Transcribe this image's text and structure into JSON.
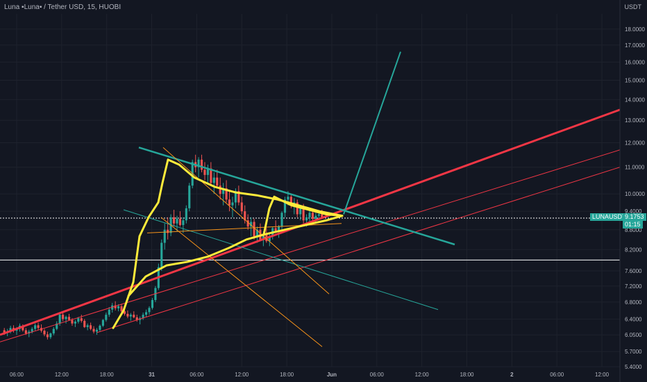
{
  "header": {
    "title": "Luna ▪Luna▪ / Tether USD, 15, HUOBI",
    "unit": "USDT"
  },
  "price_line": {
    "symbol": "LUNAUSDT",
    "last_price": "9.1753",
    "countdown": "01:15"
  },
  "colors": {
    "background": "#131722",
    "grid": "#1e222d",
    "up": "#26a69a",
    "down": "#ef5350",
    "pattern": "#ffeb3b",
    "trend_red": "#f23645",
    "trend_teal": "#26a69a",
    "channel_orange": "#f7931a",
    "axis_text": "#b2b5be"
  },
  "chart_data": {
    "type": "candlestick",
    "y_scale": "log",
    "ylim": [
      5.4,
      19.0
    ],
    "y_ticks": [
      "18.0000",
      "17.0000",
      "16.0000",
      "15.0000",
      "14.0000",
      "13.0000",
      "12.0000",
      "11.0000",
      "10.0000",
      "9.4000",
      "8.8000",
      "8.2000",
      "7.6000",
      "7.2000",
      "6.8000",
      "6.4000",
      "6.0500",
      "5.7000",
      "5.4000"
    ],
    "x_ticks": [
      "06:00",
      "12:00",
      "18:00",
      "31",
      "06:00",
      "12:00",
      "18:00",
      "Jun",
      "06:00",
      "12:00",
      "18:00",
      "2",
      "06:00",
      "12:00"
    ],
    "horizontal_levels": [
      9.1753,
      7.9
    ],
    "candles": [
      [
        6.15,
        6.2,
        6.05,
        6.1
      ],
      [
        6.1,
        6.18,
        6.02,
        6.12
      ],
      [
        6.12,
        6.25,
        6.08,
        6.2
      ],
      [
        6.2,
        6.26,
        6.1,
        6.14
      ],
      [
        6.14,
        6.22,
        6.05,
        6.18
      ],
      [
        6.18,
        6.3,
        6.12,
        6.25
      ],
      [
        6.25,
        6.28,
        6.12,
        6.15
      ],
      [
        6.15,
        6.2,
        6.05,
        6.08
      ],
      [
        6.08,
        6.16,
        6.0,
        6.12
      ],
      [
        6.12,
        6.22,
        6.08,
        6.18
      ],
      [
        6.18,
        6.3,
        6.14,
        6.26
      ],
      [
        6.26,
        6.32,
        6.15,
        6.2
      ],
      [
        6.2,
        6.28,
        6.1,
        6.14
      ],
      [
        6.14,
        6.18,
        6.02,
        6.06
      ],
      [
        6.06,
        6.12,
        5.95,
        6.0
      ],
      [
        6.0,
        6.1,
        5.96,
        6.08
      ],
      [
        6.08,
        6.22,
        6.04,
        6.18
      ],
      [
        6.18,
        6.35,
        6.15,
        6.3
      ],
      [
        6.3,
        6.55,
        6.25,
        6.5
      ],
      [
        6.5,
        6.58,
        6.35,
        6.4
      ],
      [
        6.4,
        6.48,
        6.3,
        6.45
      ],
      [
        6.45,
        6.52,
        6.36,
        6.38
      ],
      [
        6.38,
        6.42,
        6.25,
        6.3
      ],
      [
        6.3,
        6.38,
        6.22,
        6.34
      ],
      [
        6.34,
        6.45,
        6.3,
        6.42
      ],
      [
        6.42,
        6.5,
        6.32,
        6.36
      ],
      [
        6.36,
        6.4,
        6.2,
        6.22
      ],
      [
        6.22,
        6.3,
        6.15,
        6.26
      ],
      [
        6.26,
        6.32,
        6.15,
        6.18
      ],
      [
        6.18,
        6.24,
        6.08,
        6.12
      ],
      [
        6.12,
        6.2,
        6.05,
        6.16
      ],
      [
        6.16,
        6.28,
        6.12,
        6.25
      ],
      [
        6.25,
        6.4,
        6.22,
        6.38
      ],
      [
        6.38,
        6.55,
        6.34,
        6.5
      ],
      [
        6.5,
        6.68,
        6.45,
        6.62
      ],
      [
        6.62,
        6.78,
        6.55,
        6.72
      ],
      [
        6.72,
        6.82,
        6.6,
        6.65
      ],
      [
        6.65,
        6.75,
        6.58,
        6.7
      ],
      [
        6.7,
        6.76,
        6.55,
        6.58
      ],
      [
        6.58,
        6.64,
        6.48,
        6.52
      ],
      [
        6.52,
        6.6,
        6.42,
        6.46
      ],
      [
        6.46,
        6.54,
        6.36,
        6.5
      ],
      [
        6.5,
        6.58,
        6.42,
        6.44
      ],
      [
        6.44,
        6.5,
        6.34,
        6.38
      ],
      [
        6.38,
        6.46,
        6.28,
        6.42
      ],
      [
        6.42,
        6.55,
        6.38,
        6.5
      ],
      [
        6.5,
        6.62,
        6.44,
        6.56
      ],
      [
        6.56,
        6.7,
        6.5,
        6.66
      ],
      [
        6.66,
        6.9,
        6.62,
        6.85
      ],
      [
        6.85,
        7.2,
        6.8,
        7.15
      ],
      [
        7.15,
        7.8,
        7.1,
        7.7
      ],
      [
        7.7,
        8.5,
        7.6,
        8.4
      ],
      [
        8.4,
        9.0,
        8.2,
        8.8
      ],
      [
        8.8,
        9.2,
        8.5,
        8.7
      ],
      [
        8.7,
        9.3,
        8.6,
        9.2
      ],
      [
        9.2,
        9.45,
        8.9,
        9.0
      ],
      [
        9.0,
        9.25,
        8.75,
        9.15
      ],
      [
        9.15,
        9.4,
        8.9,
        8.95
      ],
      [
        8.95,
        9.2,
        8.7,
        9.1
      ],
      [
        9.1,
        9.6,
        9.0,
        9.5
      ],
      [
        9.5,
        10.4,
        9.4,
        10.3
      ],
      [
        10.3,
        11.3,
        10.2,
        11.2
      ],
      [
        11.2,
        11.5,
        10.8,
        11.0
      ],
      [
        11.0,
        11.4,
        10.6,
        11.3
      ],
      [
        11.3,
        11.5,
        10.8,
        10.9
      ],
      [
        10.9,
        11.2,
        10.5,
        10.7
      ],
      [
        10.7,
        11.1,
        10.4,
        10.95
      ],
      [
        10.95,
        11.2,
        10.3,
        10.4
      ],
      [
        10.4,
        10.8,
        10.0,
        10.6
      ],
      [
        10.6,
        10.9,
        10.2,
        10.3
      ],
      [
        10.3,
        10.6,
        9.8,
        10.0
      ],
      [
        10.0,
        10.4,
        9.6,
        10.2
      ],
      [
        10.2,
        10.5,
        9.7,
        9.8
      ],
      [
        9.8,
        10.1,
        9.4,
        9.6
      ],
      [
        9.6,
        9.9,
        9.2,
        9.7
      ],
      [
        9.7,
        10.2,
        9.5,
        10.1
      ],
      [
        10.1,
        10.3,
        9.6,
        9.7
      ],
      [
        9.7,
        9.9,
        9.3,
        9.4
      ],
      [
        9.4,
        9.6,
        9.0,
        9.1
      ],
      [
        9.1,
        9.3,
        8.8,
        8.9
      ],
      [
        8.9,
        9.2,
        8.6,
        9.05
      ],
      [
        9.05,
        9.15,
        8.5,
        8.6
      ],
      [
        8.6,
        8.9,
        8.4,
        8.8
      ],
      [
        8.8,
        9.0,
        8.45,
        8.5
      ],
      [
        8.5,
        8.75,
        8.3,
        8.65
      ],
      [
        8.65,
        8.85,
        8.4,
        8.45
      ],
      [
        8.45,
        8.7,
        8.3,
        8.6
      ],
      [
        8.6,
        8.9,
        8.5,
        8.85
      ],
      [
        8.85,
        9.1,
        8.7,
        8.75
      ],
      [
        8.75,
        8.95,
        8.55,
        8.9
      ],
      [
        8.9,
        9.4,
        8.8,
        9.35
      ],
      [
        9.35,
        9.9,
        9.2,
        9.8
      ],
      [
        9.8,
        10.1,
        9.6,
        9.9
      ],
      [
        9.9,
        10.0,
        9.5,
        9.6
      ],
      [
        9.6,
        9.85,
        9.3,
        9.7
      ],
      [
        9.7,
        9.8,
        9.2,
        9.3
      ],
      [
        9.3,
        9.6,
        9.1,
        9.5
      ],
      [
        9.5,
        9.65,
        9.0,
        9.1
      ],
      [
        9.1,
        9.3,
        8.9,
        9.2
      ],
      [
        9.2,
        9.45,
        9.05,
        9.35
      ],
      [
        9.35,
        9.5,
        9.1,
        9.15
      ],
      [
        9.15,
        9.35,
        9.0,
        9.25
      ],
      [
        9.25,
        9.4,
        9.1,
        9.3
      ],
      [
        9.3,
        9.45,
        9.15,
        9.18
      ]
    ]
  }
}
